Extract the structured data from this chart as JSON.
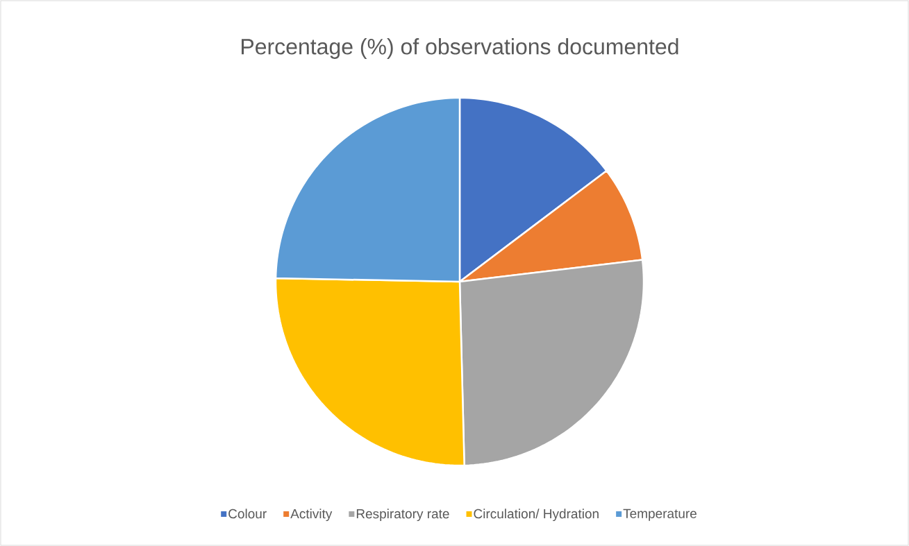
{
  "chart_data": {
    "type": "pie",
    "title": "Percentage (%) of observations documented",
    "categories": [
      "Colour",
      "Activity",
      "Respiratory rate",
      "Circulation/ Hydration",
      "Temperature"
    ],
    "values": [
      14.7,
      8.4,
      26.5,
      25.7,
      24.7
    ],
    "colors": [
      "#4472c4",
      "#ed7d31",
      "#a5a5a5",
      "#ffc000",
      "#5b9bd5"
    ],
    "legend": "bottom"
  }
}
